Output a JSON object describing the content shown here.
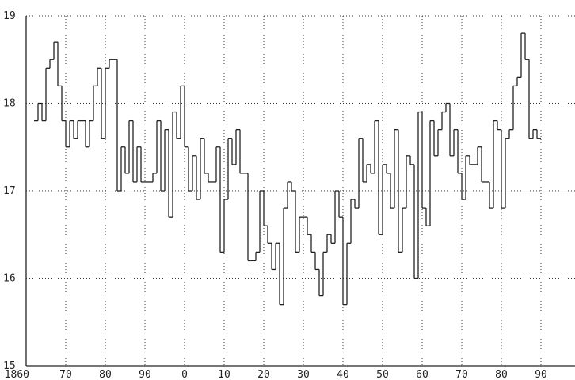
{
  "chart_data": {
    "type": "step",
    "x": [
      1862,
      1863,
      1864,
      1865,
      1866,
      1867,
      1868,
      1869,
      1870,
      1871,
      1872,
      1873,
      1874,
      1875,
      1876,
      1877,
      1878,
      1879,
      1880,
      1881,
      1882,
      1883,
      1884,
      1885,
      1886,
      1887,
      1888,
      1889,
      1890,
      1891,
      1892,
      1893,
      1894,
      1895,
      1896,
      1897,
      1898,
      1899,
      1900,
      1901,
      1902,
      1903,
      1904,
      1905,
      1906,
      1907,
      1908,
      1909,
      1910,
      1911,
      1912,
      1913,
      1914,
      1915,
      1916,
      1917,
      1918,
      1919,
      1920,
      1921,
      1922,
      1923,
      1924,
      1925,
      1926,
      1927,
      1928,
      1929,
      1930,
      1931,
      1932,
      1933,
      1934,
      1935,
      1936,
      1937,
      1938,
      1939,
      1940,
      1941,
      1942,
      1943,
      1944,
      1945,
      1946,
      1947,
      1948,
      1949,
      1950,
      1951,
      1952,
      1953,
      1954,
      1955,
      1956,
      1957,
      1958,
      1959,
      1960,
      1961,
      1962,
      1963,
      1964,
      1965,
      1966,
      1967,
      1968,
      1969,
      1970,
      1971,
      1972,
      1973,
      1974,
      1975,
      1976,
      1977,
      1978,
      1979,
      1980,
      1981,
      1982,
      1983,
      1984,
      1985,
      1986,
      1987,
      1988,
      1989
    ],
    "values": [
      17.8,
      18.0,
      17.8,
      18.4,
      18.5,
      18.7,
      18.2,
      17.8,
      17.5,
      17.8,
      17.6,
      17.8,
      17.8,
      17.5,
      17.8,
      18.2,
      18.4,
      17.6,
      18.4,
      18.5,
      18.5,
      17.0,
      17.5,
      17.2,
      17.8,
      17.1,
      17.5,
      17.1,
      17.1,
      17.1,
      17.2,
      17.8,
      17.0,
      17.7,
      16.7,
      17.9,
      17.6,
      18.2,
      17.5,
      17.0,
      17.4,
      16.9,
      17.6,
      17.2,
      17.1,
      17.1,
      17.5,
      16.3,
      16.9,
      17.6,
      17.3,
      17.7,
      17.2,
      17.2,
      16.2,
      16.2,
      16.3,
      17.0,
      16.6,
      16.4,
      16.1,
      16.4,
      15.7,
      16.8,
      17.1,
      17.0,
      16.3,
      16.7,
      16.7,
      16.5,
      16.3,
      16.1,
      15.8,
      16.3,
      16.5,
      16.4,
      17.0,
      16.7,
      15.7,
      16.4,
      16.9,
      16.8,
      17.6,
      17.1,
      17.3,
      17.2,
      17.8,
      16.5,
      17.3,
      17.2,
      16.8,
      17.7,
      16.3,
      16.8,
      17.4,
      17.3,
      16.0,
      17.9,
      16.8,
      16.6,
      17.8,
      17.4,
      17.7,
      17.9,
      18.0,
      17.4,
      17.7,
      17.2,
      16.9,
      17.4,
      17.3,
      17.3,
      17.5,
      17.1,
      17.1,
      16.8,
      17.8,
      17.7,
      16.8,
      17.6,
      17.7,
      18.2,
      18.3,
      18.8,
      18.5,
      17.6,
      17.7,
      17.6
    ],
    "color": "#222222",
    "xlim": [
      1860,
      1998.6
    ],
    "xticks": [
      1860,
      {
        "value": 1870,
        "label": "70"
      },
      {
        "value": 1880,
        "label": "80"
      },
      {
        "value": 1890,
        "label": "90"
      },
      {
        "value": 1900,
        "label": "0"
      },
      {
        "value": 1910,
        "label": "10"
      },
      {
        "value": 1920,
        "label": "20"
      },
      {
        "value": 1930,
        "label": "30"
      },
      {
        "value": 1940,
        "label": "40"
      },
      {
        "value": 1950,
        "label": "50"
      },
      {
        "value": 1960,
        "label": "60"
      },
      {
        "value": 1970,
        "label": "70"
      },
      {
        "value": 1980,
        "label": "80"
      },
      {
        "value": 1990,
        "label": "90"
      }
    ],
    "ylim": [
      15,
      19
    ],
    "yticks": [
      15,
      16,
      17,
      18,
      19
    ],
    "grid": true
  }
}
